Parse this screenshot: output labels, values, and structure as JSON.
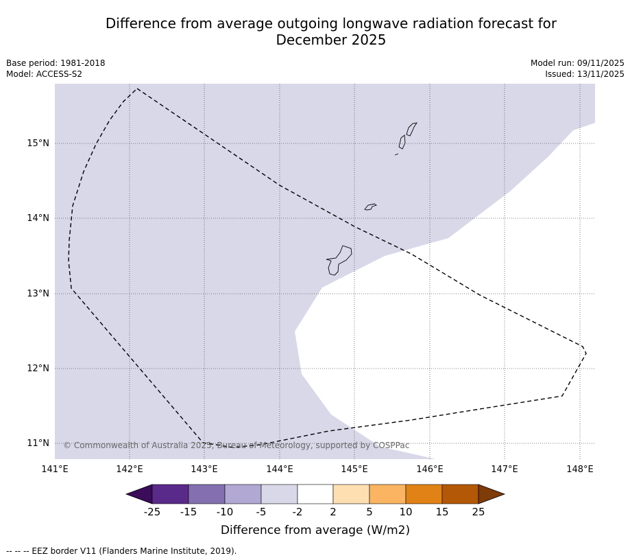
{
  "title": {
    "line1": "Difference from average outgoing longwave radiation forecast for",
    "line2": "December 2025"
  },
  "meta_left": {
    "base_period": "Base period: 1981-2018",
    "model": "Model: ACCESS-S2"
  },
  "meta_right": {
    "model_run": "Model run: 09/11/2025",
    "issued": "Issued: 13/11/2025"
  },
  "map": {
    "lon_labels": [
      "141°E",
      "142°E",
      "143°E",
      "144°E",
      "145°E",
      "146°E",
      "147°E",
      "148°E"
    ],
    "lat_labels": [
      "15°N",
      "14°N",
      "13°N",
      "12°N",
      "11°N"
    ],
    "copyright": "© Commonwealth of Australia 2025, Bureau of Meteorology, supported by COSPPac",
    "shading_class": "-5 to -2 W/m2",
    "colors": {
      "negative_light": "#d8d8e9",
      "eez_line": "#000000",
      "grid": "#555555"
    }
  },
  "colorbar": {
    "label": "Difference from average (W/m2)",
    "ticks": [
      "-25",
      "-15",
      "-10",
      "-5",
      "-2",
      "2",
      "5",
      "10",
      "15",
      "25"
    ],
    "colors": [
      "#3a0c5a",
      "#5a2a8a",
      "#8470b0",
      "#b1a9d3",
      "#d8d8e9",
      "#ffffff",
      "#fddfb2",
      "#fbb562",
      "#e08216",
      "#b35806",
      "#7f3b08"
    ]
  },
  "footer": "--  --  -- EEZ border V11 (Flanders Marine Institute, 2019)."
}
